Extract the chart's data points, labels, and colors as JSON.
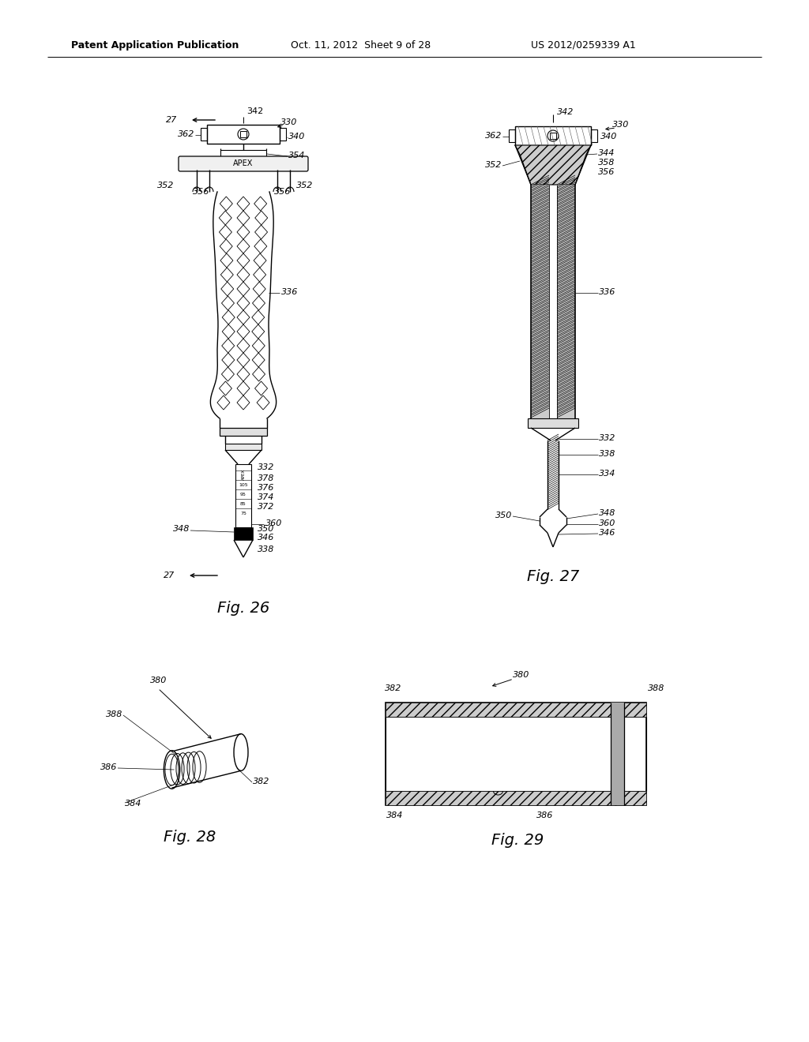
{
  "bg_color": "#ffffff",
  "header_text": "Patent Application Publication",
  "header_date": "Oct. 11, 2012  Sheet 9 of 28",
  "header_patent": "US 2012/0259339 A1"
}
